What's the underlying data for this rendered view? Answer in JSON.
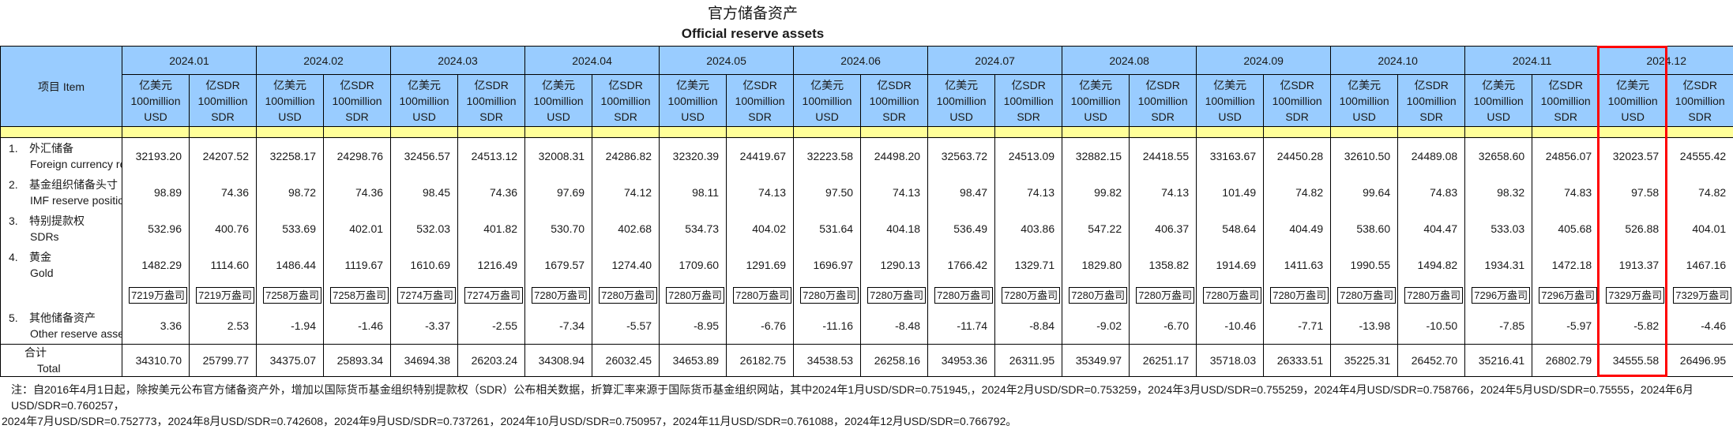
{
  "title": {
    "zh": "官方储备资产",
    "en": "Official reserve assets"
  },
  "colors": {
    "header_bg": "#99CCFF",
    "band_bg": "#FFFF99",
    "highlight": "#FF0000"
  },
  "table": {
    "item_header": "项目  Item",
    "months": [
      "2024.01",
      "2024.02",
      "2024.03",
      "2024.04",
      "2024.05",
      "2024.06",
      "2024.07",
      "2024.08",
      "2024.09",
      "2024.10",
      "2024.11",
      "2024.12"
    ],
    "unit_usd": [
      "亿美元",
      "100million",
      "USD"
    ],
    "unit_sdr": [
      "亿SDR",
      "100million",
      "SDR"
    ],
    "rows": [
      {
        "key": "foreign-currency-reserves",
        "no": "1.",
        "zh": "外汇储备",
        "en": "Foreign currency reserves",
        "boxed": false,
        "values": [
          "32193.20",
          "24207.52",
          "32258.17",
          "24298.76",
          "32456.57",
          "24513.12",
          "32008.31",
          "24286.82",
          "32320.39",
          "24419.67",
          "32223.58",
          "24498.20",
          "32563.72",
          "24513.09",
          "32882.15",
          "24418.55",
          "33163.67",
          "24450.28",
          "32610.50",
          "24489.08",
          "32658.60",
          "24856.07",
          "32023.57",
          "24555.42"
        ]
      },
      {
        "key": "imf-reserve-position",
        "no": "2.",
        "zh": "基金组织储备头寸",
        "en": "IMF reserve position",
        "boxed": false,
        "values": [
          "98.89",
          "74.36",
          "98.72",
          "74.36",
          "98.45",
          "74.36",
          "97.69",
          "74.12",
          "98.11",
          "74.13",
          "97.50",
          "74.13",
          "98.47",
          "74.13",
          "99.82",
          "74.13",
          "101.49",
          "74.82",
          "99.64",
          "74.83",
          "98.32",
          "74.83",
          "97.58",
          "74.82"
        ]
      },
      {
        "key": "sdrs",
        "no": "3.",
        "zh": "特别提款权",
        "en": "SDRs",
        "boxed": false,
        "values": [
          "532.96",
          "400.76",
          "533.69",
          "402.01",
          "532.03",
          "401.82",
          "530.70",
          "402.68",
          "534.73",
          "404.02",
          "531.64",
          "404.18",
          "536.49",
          "403.86",
          "547.22",
          "406.37",
          "548.64",
          "404.49",
          "538.60",
          "404.47",
          "533.03",
          "405.68",
          "526.88",
          "404.01"
        ]
      },
      {
        "key": "gold",
        "no": "4.",
        "zh": "黄金",
        "en": "Gold",
        "boxed": false,
        "values": [
          "1482.29",
          "1114.60",
          "1486.44",
          "1119.67",
          "1610.69",
          "1216.49",
          "1679.57",
          "1274.40",
          "1709.60",
          "1291.69",
          "1696.97",
          "1290.13",
          "1766.42",
          "1329.71",
          "1829.80",
          "1358.82",
          "1914.69",
          "1411.63",
          "1990.55",
          "1494.82",
          "1934.31",
          "1472.18",
          "1913.37",
          "1467.16"
        ]
      },
      {
        "key": "gold-ounces",
        "no": "",
        "zh": "",
        "en": "",
        "boxed": true,
        "values": [
          "7219万盎司",
          "7219万盎司",
          "7258万盎司",
          "7258万盎司",
          "7274万盎司",
          "7274万盎司",
          "7280万盎司",
          "7280万盎司",
          "7280万盎司",
          "7280万盎司",
          "7280万盎司",
          "7280万盎司",
          "7280万盎司",
          "7280万盎司",
          "7280万盎司",
          "7280万盎司",
          "7280万盎司",
          "7280万盎司",
          "7280万盎司",
          "7280万盎司",
          "7296万盎司",
          "7296万盎司",
          "7329万盎司",
          "7329万盎司"
        ]
      },
      {
        "key": "other-reserve-assets",
        "no": "5.",
        "zh": "其他储备资产",
        "en": "Other reserve assets",
        "boxed": false,
        "values": [
          "3.36",
          "2.53",
          "-1.94",
          "-1.46",
          "-3.37",
          "-2.55",
          "-7.34",
          "-5.57",
          "-8.95",
          "-6.76",
          "-11.16",
          "-8.48",
          "-11.74",
          "-8.84",
          "-9.02",
          "-6.70",
          "-10.46",
          "-7.71",
          "-13.98",
          "-10.50",
          "-7.85",
          "-5.97",
          "-5.82",
          "-4.46"
        ]
      }
    ],
    "total": {
      "key": "total",
      "zh": "合计",
      "en": "Total",
      "values": [
        "34310.70",
        "25799.77",
        "34375.07",
        "25893.34",
        "34694.38",
        "26203.24",
        "34308.94",
        "26032.45",
        "34653.89",
        "26182.75",
        "34538.53",
        "26258.16",
        "34953.36",
        "26311.95",
        "35349.97",
        "26251.17",
        "35718.03",
        "26333.51",
        "35225.31",
        "26452.70",
        "35216.41",
        "26802.79",
        "34555.58",
        "26496.95"
      ]
    }
  },
  "highlight": {
    "month_index": 11,
    "subcol": "usd"
  },
  "notes": [
    "注：自2016年4月1日起，除按美元公布官方储备资产外，增加以国际货币基金组织特别提款权（SDR）公布相关数据，折算汇率来源于国际货币基金组织网站，其中2024年1月USD/SDR=0.751945,，2024年2月USD/SDR=0.753259，2024年3月USD/SDR=0.755259，2024年4月USD/SDR=0.758766，2024年5月USD/SDR=0.75555，2024年6月USD/SDR=0.760257，",
    "2024年7月USD/SDR=0.752773，2024年8月USD/SDR=0.742608，2024年9月USD/SDR=0.737261，2024年10月USD/SDR=0.750957，2024年11月USD/SDR=0.761088，2024年12月USD/SDR=0.766792。"
  ]
}
